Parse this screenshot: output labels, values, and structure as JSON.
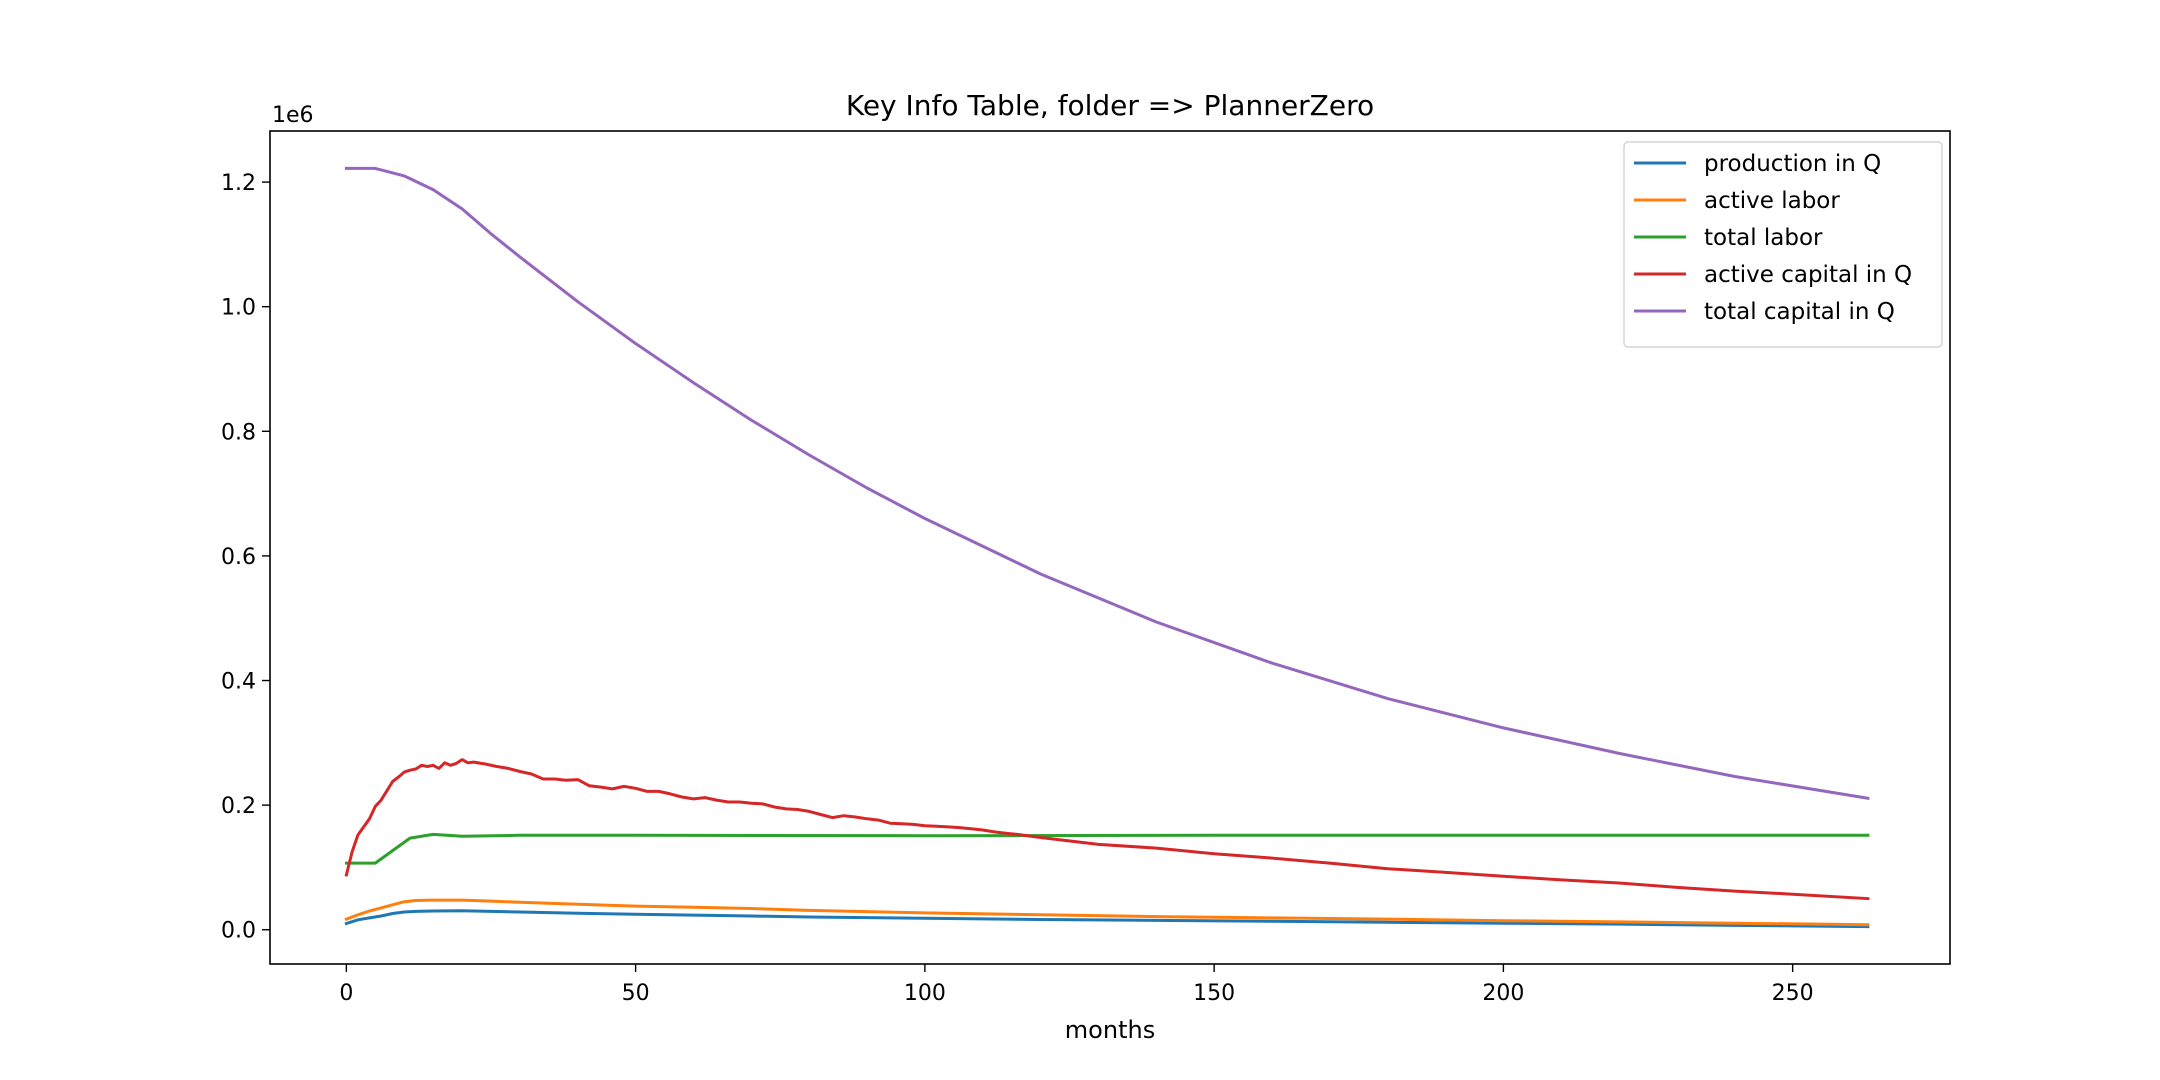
{
  "chart_data": {
    "type": "line",
    "title": "Key Info Table, folder => PlannerZero",
    "xlabel": "months",
    "ylabel": "",
    "y_offset_text": "1e6",
    "xlim": [
      -13.2,
      277.2
    ],
    "ylim": [
      -55000,
      1282000
    ],
    "xticks": [
      0,
      50,
      100,
      150,
      200,
      250
    ],
    "xtick_labels": [
      "0",
      "50",
      "100",
      "150",
      "200",
      "250"
    ],
    "yticks": [
      0,
      200000,
      400000,
      600000,
      800000,
      1000000,
      1200000
    ],
    "ytick_labels": [
      "0.0",
      "0.2",
      "0.4",
      "0.6",
      "0.8",
      "1.0",
      "1.2"
    ],
    "grid": false,
    "legend_position": "top-right",
    "series": [
      {
        "name": "production in Q",
        "color": "#1f77b4",
        "x": [
          0,
          2,
          4,
          6,
          8,
          10,
          12,
          15,
          20,
          25,
          30,
          40,
          50,
          60,
          70,
          80,
          100,
          120,
          140,
          160,
          180,
          200,
          220,
          240,
          263
        ],
        "values": [
          10000,
          16000,
          19000,
          22000,
          26000,
          28500,
          29500,
          30000,
          30500,
          29500,
          28500,
          26500,
          25000,
          23500,
          22000,
          20500,
          18500,
          16500,
          15000,
          13500,
          12000,
          10500,
          9000,
          7000,
          5000
        ]
      },
      {
        "name": "active labor",
        "color": "#ff7f0e",
        "x": [
          0,
          2,
          4,
          6,
          8,
          10,
          12,
          15,
          20,
          25,
          30,
          40,
          50,
          60,
          70,
          80,
          100,
          120,
          140,
          160,
          180,
          200,
          220,
          240,
          263
        ],
        "values": [
          17000,
          24000,
          30000,
          35000,
          40000,
          45000,
          47000,
          47500,
          47500,
          46000,
          44000,
          41000,
          38000,
          36000,
          34000,
          31000,
          27000,
          24000,
          21000,
          19000,
          17000,
          14500,
          12500,
          10500,
          8000
        ]
      },
      {
        "name": "total labor",
        "color": "#2ca02c",
        "x": [
          0,
          5,
          11,
          15,
          20,
          30,
          50,
          100,
          150,
          200,
          263
        ],
        "values": [
          107000,
          107000,
          147000,
          153000,
          150000,
          151500,
          151500,
          151000,
          151500,
          151500,
          151500
        ]
      },
      {
        "name": "active capital in Q",
        "color": "#d62728",
        "x": [
          0,
          1,
          2,
          3,
          4,
          5,
          6,
          7,
          8,
          9,
          10,
          11,
          12,
          13,
          14,
          15,
          16,
          17,
          18,
          19,
          20,
          21,
          22,
          24,
          26,
          28,
          30,
          32,
          34,
          36,
          38,
          40,
          42,
          44,
          46,
          48,
          50,
          52,
          54,
          56,
          58,
          60,
          62,
          64,
          66,
          68,
          70,
          72,
          74,
          76,
          78,
          80,
          82,
          84,
          86,
          88,
          90,
          92,
          94,
          96,
          98,
          100,
          102,
          104,
          106,
          108,
          110,
          112,
          114,
          116,
          120,
          130,
          140,
          150,
          160,
          170,
          180,
          190,
          200,
          210,
          220,
          230,
          240,
          250,
          263
        ],
        "values": [
          88000,
          125000,
          152000,
          165000,
          178000,
          198000,
          208000,
          223000,
          238000,
          245000,
          253000,
          256000,
          258000,
          264000,
          262000,
          264000,
          259000,
          268000,
          264000,
          267000,
          273000,
          268000,
          269000,
          266000,
          262000,
          259000,
          254000,
          250000,
          242000,
          242000,
          240000,
          241000,
          231000,
          229000,
          226000,
          230000,
          227000,
          222000,
          222000,
          218000,
          213000,
          210000,
          212000,
          208000,
          205000,
          205000,
          203000,
          202000,
          197000,
          194000,
          193000,
          190000,
          185000,
          180000,
          183000,
          181000,
          178000,
          176000,
          171000,
          170000,
          169000,
          167000,
          166000,
          165000,
          164000,
          162000,
          160000,
          157000,
          155000,
          153000,
          148000,
          137000,
          131000,
          122000,
          115000,
          107000,
          98000,
          92000,
          86000,
          80000,
          75000,
          68000,
          62000,
          57000,
          50000
        ]
      },
      {
        "name": "total capital in Q",
        "color": "#9467bd",
        "x": [
          0,
          5,
          10,
          15,
          20,
          25,
          30,
          40,
          50,
          60,
          70,
          80,
          90,
          100,
          120,
          140,
          160,
          180,
          200,
          220,
          240,
          263
        ],
        "values": [
          1222000,
          1222000,
          1210000,
          1188000,
          1157000,
          1117000,
          1080000,
          1008000,
          941000,
          878000,
          818000,
          762000,
          709000,
          660000,
          571000,
          494000,
          428000,
          371000,
          324000,
          283000,
          246000,
          211000
        ]
      }
    ]
  }
}
